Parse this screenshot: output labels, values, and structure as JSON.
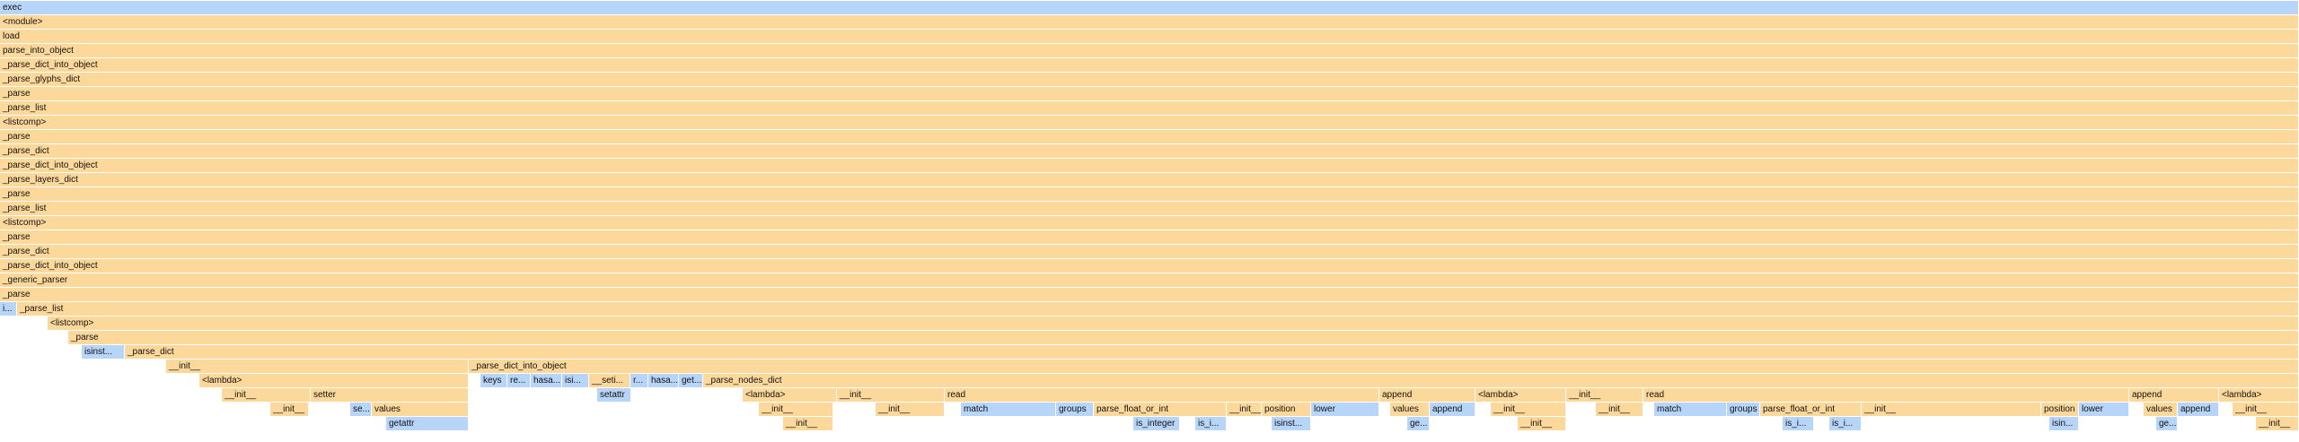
{
  "colors": {
    "sys": "#fdd89b",
    "py": "#b7d4f9"
  },
  "frames": [
    {
      "label": "exec",
      "depth": 0,
      "start": 0,
      "end": 2560,
      "kind": "py"
    },
    {
      "label": "<module>",
      "depth": 1,
      "start": 0,
      "end": 2560,
      "kind": "sys"
    },
    {
      "label": "load",
      "depth": 2,
      "start": 0,
      "end": 2560,
      "kind": "sys"
    },
    {
      "label": "parse_into_object",
      "depth": 3,
      "start": 0,
      "end": 2560,
      "kind": "sys"
    },
    {
      "label": "_parse_dict_into_object",
      "depth": 4,
      "start": 0,
      "end": 2560,
      "kind": "sys"
    },
    {
      "label": "_parse_glyphs_dict",
      "depth": 5,
      "start": 0,
      "end": 2560,
      "kind": "sys"
    },
    {
      "label": "_parse",
      "depth": 6,
      "start": 0,
      "end": 2560,
      "kind": "sys"
    },
    {
      "label": "_parse_list",
      "depth": 7,
      "start": 0,
      "end": 2560,
      "kind": "sys"
    },
    {
      "label": "<listcomp>",
      "depth": 8,
      "start": 0,
      "end": 2560,
      "kind": "sys"
    },
    {
      "label": "_parse",
      "depth": 9,
      "start": 0,
      "end": 2560,
      "kind": "sys"
    },
    {
      "label": "_parse_dict",
      "depth": 10,
      "start": 0,
      "end": 2560,
      "kind": "sys"
    },
    {
      "label": "_parse_dict_into_object",
      "depth": 11,
      "start": 0,
      "end": 2560,
      "kind": "sys"
    },
    {
      "label": "_parse_layers_dict",
      "depth": 12,
      "start": 0,
      "end": 2560,
      "kind": "sys"
    },
    {
      "label": "_parse",
      "depth": 13,
      "start": 0,
      "end": 2560,
      "kind": "sys"
    },
    {
      "label": "_parse_list",
      "depth": 14,
      "start": 0,
      "end": 2560,
      "kind": "sys"
    },
    {
      "label": "<listcomp>",
      "depth": 15,
      "start": 0,
      "end": 2560,
      "kind": "sys"
    },
    {
      "label": "_parse",
      "depth": 16,
      "start": 0,
      "end": 2560,
      "kind": "sys"
    },
    {
      "label": "_parse_dict",
      "depth": 17,
      "start": 0,
      "end": 2560,
      "kind": "sys"
    },
    {
      "label": "_parse_dict_into_object",
      "depth": 18,
      "start": 0,
      "end": 2560,
      "kind": "sys"
    },
    {
      "label": "_generic_parser",
      "depth": 19,
      "start": 0,
      "end": 2560,
      "kind": "sys"
    },
    {
      "label": "_parse",
      "depth": 20,
      "start": 0,
      "end": 2560,
      "kind": "sys"
    },
    {
      "label": "i...",
      "depth": 21,
      "start": 0,
      "end": 19,
      "kind": "py"
    },
    {
      "label": "_parse_list",
      "depth": 21,
      "start": 19,
      "end": 2560,
      "kind": "sys"
    },
    {
      "label": "<listcomp>",
      "depth": 22,
      "start": 53,
      "end": 2560,
      "kind": "sys"
    },
    {
      "label": "_parse",
      "depth": 23,
      "start": 76,
      "end": 2560,
      "kind": "sys"
    },
    {
      "label": "isinst...",
      "depth": 24,
      "start": 91,
      "end": 139,
      "kind": "py"
    },
    {
      "label": "_parse_dict",
      "depth": 24,
      "start": 139,
      "end": 2560,
      "kind": "sys"
    },
    {
      "label": "__init__",
      "depth": 25,
      "start": 185,
      "end": 522,
      "kind": "sys"
    },
    {
      "label": "_parse_dict_into_object",
      "depth": 25,
      "start": 522,
      "end": 2560,
      "kind": "sys"
    },
    {
      "label": "<lambda>",
      "depth": 26,
      "start": 222,
      "end": 522,
      "kind": "sys"
    },
    {
      "label": "keys",
      "depth": 26,
      "start": 535,
      "end": 565,
      "kind": "py"
    },
    {
      "label": "re...",
      "depth": 26,
      "start": 565,
      "end": 591,
      "kind": "py"
    },
    {
      "label": "hasa...",
      "depth": 26,
      "start": 591,
      "end": 626,
      "kind": "py"
    },
    {
      "label": "isi...",
      "depth": 26,
      "start": 626,
      "end": 656,
      "kind": "py"
    },
    {
      "label": "__seti...",
      "depth": 26,
      "start": 656,
      "end": 702,
      "kind": "sys"
    },
    {
      "label": "r...",
      "depth": 26,
      "start": 702,
      "end": 722,
      "kind": "py"
    },
    {
      "label": "hasa...",
      "depth": 26,
      "start": 722,
      "end": 756,
      "kind": "py"
    },
    {
      "label": "get...",
      "depth": 26,
      "start": 756,
      "end": 783,
      "kind": "py"
    },
    {
      "label": "_parse_nodes_dict",
      "depth": 26,
      "start": 783,
      "end": 2560,
      "kind": "sys"
    },
    {
      "label": "__init__",
      "depth": 27,
      "start": 247,
      "end": 346,
      "kind": "sys"
    },
    {
      "label": "setter",
      "depth": 27,
      "start": 346,
      "end": 522,
      "kind": "sys"
    },
    {
      "label": "setattr",
      "depth": 27,
      "start": 665,
      "end": 703,
      "kind": "py"
    },
    {
      "label": "<lambda>",
      "depth": 27,
      "start": 827,
      "end": 932,
      "kind": "sys"
    },
    {
      "label": "__init__",
      "depth": 27,
      "start": 932,
      "end": 1052,
      "kind": "sys"
    },
    {
      "label": "read",
      "depth": 27,
      "start": 1052,
      "end": 1536,
      "kind": "sys"
    },
    {
      "label": "append",
      "depth": 27,
      "start": 1536,
      "end": 1643,
      "kind": "sys"
    },
    {
      "label": "<lambda>",
      "depth": 27,
      "start": 1643,
      "end": 1744,
      "kind": "sys"
    },
    {
      "label": "__init__",
      "depth": 27,
      "start": 1744,
      "end": 1830,
      "kind": "sys"
    },
    {
      "label": "read",
      "depth": 27,
      "start": 1830,
      "end": 2371,
      "kind": "sys"
    },
    {
      "label": "append",
      "depth": 27,
      "start": 2371,
      "end": 2471,
      "kind": "sys"
    },
    {
      "label": "<lambda>",
      "depth": 27,
      "start": 2471,
      "end": 2560,
      "kind": "sys"
    },
    {
      "label": "__init__",
      "depth": 28,
      "start": 301,
      "end": 344,
      "kind": "sys"
    },
    {
      "label": "se...",
      "depth": 28,
      "start": 390,
      "end": 414,
      "kind": "py"
    },
    {
      "label": "values",
      "depth": 28,
      "start": 414,
      "end": 522,
      "kind": "sys"
    },
    {
      "label": "__init__",
      "depth": 28,
      "start": 845,
      "end": 928,
      "kind": "sys"
    },
    {
      "label": "__init__",
      "depth": 28,
      "start": 975,
      "end": 1052,
      "kind": "sys"
    },
    {
      "label": "match",
      "depth": 28,
      "start": 1070,
      "end": 1176,
      "kind": "py"
    },
    {
      "label": "groups",
      "depth": 28,
      "start": 1176,
      "end": 1218,
      "kind": "py"
    },
    {
      "label": "parse_float_or_int",
      "depth": 28,
      "start": 1218,
      "end": 1366,
      "kind": "sys"
    },
    {
      "label": "__init__",
      "depth": 28,
      "start": 1366,
      "end": 1405,
      "kind": "sys"
    },
    {
      "label": "position",
      "depth": 28,
      "start": 1405,
      "end": 1460,
      "kind": "sys"
    },
    {
      "label": "lower",
      "depth": 28,
      "start": 1460,
      "end": 1536,
      "kind": "py"
    },
    {
      "label": "values",
      "depth": 28,
      "start": 1548,
      "end": 1592,
      "kind": "sys"
    },
    {
      "label": "append",
      "depth": 28,
      "start": 1592,
      "end": 1643,
      "kind": "py"
    },
    {
      "label": "__init__",
      "depth": 28,
      "start": 1660,
      "end": 1744,
      "kind": "sys"
    },
    {
      "label": "__init__",
      "depth": 28,
      "start": 1777,
      "end": 1830,
      "kind": "sys"
    },
    {
      "label": "match",
      "depth": 28,
      "start": 1842,
      "end": 1923,
      "kind": "py"
    },
    {
      "label": "groups",
      "depth": 28,
      "start": 1923,
      "end": 1960,
      "kind": "py"
    },
    {
      "label": "parse_float_or_int",
      "depth": 28,
      "start": 1960,
      "end": 2073,
      "kind": "sys"
    },
    {
      "label": "__init__",
      "depth": 28,
      "start": 2073,
      "end": 2273,
      "kind": "sys"
    },
    {
      "label": "position",
      "depth": 28,
      "start": 2273,
      "end": 2315,
      "kind": "sys"
    },
    {
      "label": "lower",
      "depth": 28,
      "start": 2315,
      "end": 2371,
      "kind": "py"
    },
    {
      "label": "values",
      "depth": 28,
      "start": 2387,
      "end": 2425,
      "kind": "sys"
    },
    {
      "label": "append",
      "depth": 28,
      "start": 2425,
      "end": 2471,
      "kind": "py"
    },
    {
      "label": "__init__",
      "depth": 28,
      "start": 2486,
      "end": 2560,
      "kind": "sys"
    },
    {
      "label": "getattr",
      "depth": 29,
      "start": 430,
      "end": 522,
      "kind": "py"
    },
    {
      "label": "__init__",
      "depth": 29,
      "start": 872,
      "end": 928,
      "kind": "sys"
    },
    {
      "label": "is_integer",
      "depth": 29,
      "start": 1262,
      "end": 1314,
      "kind": "py"
    },
    {
      "label": "is_i...",
      "depth": 29,
      "start": 1331,
      "end": 1366,
      "kind": "py"
    },
    {
      "label": "isinst...",
      "depth": 29,
      "start": 1416,
      "end": 1460,
      "kind": "py"
    },
    {
      "label": "ge...",
      "depth": 29,
      "start": 1567,
      "end": 1592,
      "kind": "py"
    },
    {
      "label": "__init__",
      "depth": 29,
      "start": 1690,
      "end": 1744,
      "kind": "sys"
    },
    {
      "label": "is_i...",
      "depth": 29,
      "start": 1985,
      "end": 2020,
      "kind": "py"
    },
    {
      "label": "is_i...",
      "depth": 29,
      "start": 2037,
      "end": 2073,
      "kind": "py"
    },
    {
      "label": "isin...",
      "depth": 29,
      "start": 2282,
      "end": 2315,
      "kind": "py"
    },
    {
      "label": "ge...",
      "depth": 29,
      "start": 2401,
      "end": 2425,
      "kind": "py"
    },
    {
      "label": "__init__",
      "depth": 29,
      "start": 2512,
      "end": 2560,
      "kind": "sys"
    }
  ]
}
